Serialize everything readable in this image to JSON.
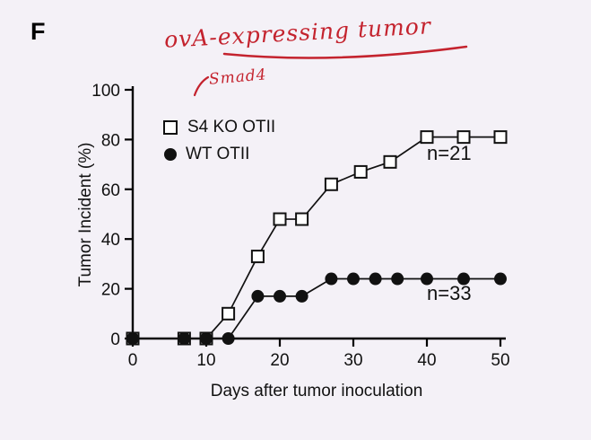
{
  "panel": {
    "label": "F"
  },
  "annotations": {
    "handwritten_title": "ovA-expressing tumor",
    "handwritten_gene": "Smad4",
    "ink_color": "#c4232e"
  },
  "chart_data": {
    "type": "line",
    "title": "",
    "xlabel": "Days after tumor inoculation",
    "ylabel": "Tumor Incident (%)",
    "xlim": [
      0,
      50
    ],
    "ylim": [
      0,
      100
    ],
    "xticks": [
      0,
      10,
      20,
      30,
      40,
      50
    ],
    "yticks": [
      0,
      20,
      40,
      60,
      80,
      100
    ],
    "grid": false,
    "legend_position": "inside-top-left",
    "line_color": "#111111",
    "series": [
      {
        "name": "S4 KO OTII",
        "marker": "open-square",
        "n_label": "n=21",
        "x": [
          0,
          7,
          10,
          13,
          17,
          20,
          23,
          27,
          31,
          35,
          40,
          45,
          50
        ],
        "y": [
          0,
          0,
          0,
          10,
          33,
          48,
          48,
          62,
          67,
          71,
          81,
          81,
          81
        ]
      },
      {
        "name": "WT OTII",
        "marker": "filled-circle",
        "n_label": "n=33",
        "x": [
          0,
          7,
          10,
          13,
          17,
          20,
          23,
          27,
          30,
          33,
          36,
          40,
          45,
          50
        ],
        "y": [
          0,
          0,
          0,
          0,
          17,
          17,
          17,
          24,
          24,
          24,
          24,
          24,
          24,
          24
        ]
      }
    ]
  }
}
